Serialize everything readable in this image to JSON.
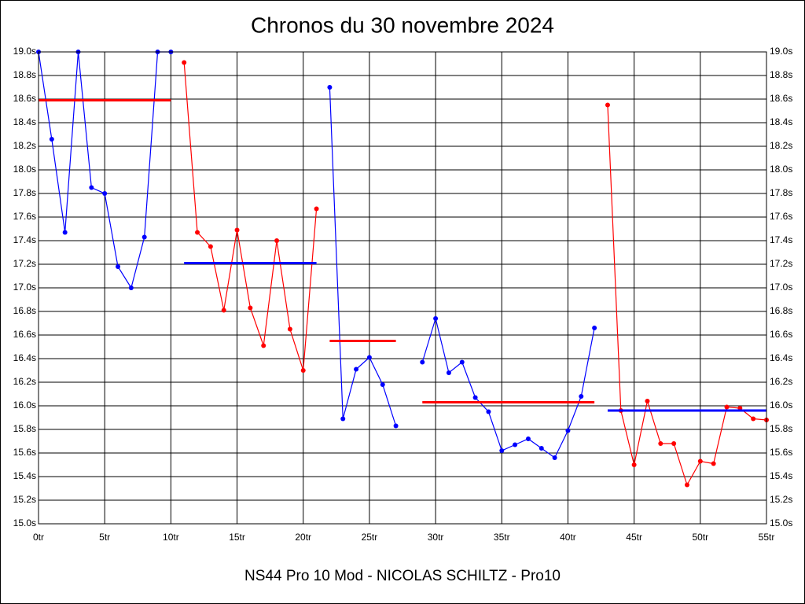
{
  "chart_data": {
    "type": "line",
    "title": "Chronos du 30 novembre 2024",
    "xlabel": "NS44 Pro 10 Mod - NICOLAS SCHILTZ - Pro10",
    "xlim": [
      0,
      55
    ],
    "ylim": [
      15.0,
      19.0
    ],
    "xticks": [
      {
        "value": 0,
        "label": "0tr"
      },
      {
        "value": 5,
        "label": "5tr"
      },
      {
        "value": 10,
        "label": "10tr"
      },
      {
        "value": 15,
        "label": "15tr"
      },
      {
        "value": 20,
        "label": "20tr"
      },
      {
        "value": 25,
        "label": "25tr"
      },
      {
        "value": 30,
        "label": "30tr"
      },
      {
        "value": 35,
        "label": "35tr"
      },
      {
        "value": 40,
        "label": "40tr"
      },
      {
        "value": 45,
        "label": "45tr"
      },
      {
        "value": 50,
        "label": "50tr"
      },
      {
        "value": 55,
        "label": "55tr"
      }
    ],
    "yticks": [
      {
        "value": 15.0,
        "label": "15.0s"
      },
      {
        "value": 15.2,
        "label": "15.2s"
      },
      {
        "value": 15.4,
        "label": "15.4s"
      },
      {
        "value": 15.6,
        "label": "15.6s"
      },
      {
        "value": 15.8,
        "label": "15.8s"
      },
      {
        "value": 16.0,
        "label": "16.0s"
      },
      {
        "value": 16.2,
        "label": "16.2s"
      },
      {
        "value": 16.4,
        "label": "16.4s"
      },
      {
        "value": 16.6,
        "label": "16.6s"
      },
      {
        "value": 16.8,
        "label": "16.8s"
      },
      {
        "value": 17.0,
        "label": "17.0s"
      },
      {
        "value": 17.2,
        "label": "17.2s"
      },
      {
        "value": 17.4,
        "label": "17.4s"
      },
      {
        "value": 17.6,
        "label": "17.6s"
      },
      {
        "value": 17.8,
        "label": "17.8s"
      },
      {
        "value": 18.0,
        "label": "18.0s"
      },
      {
        "value": 18.2,
        "label": "18.2s"
      },
      {
        "value": 18.4,
        "label": "18.4s"
      },
      {
        "value": 18.6,
        "label": "18.6s"
      },
      {
        "value": 18.8,
        "label": "18.8s"
      },
      {
        "value": 19.0,
        "label": "19.0s"
      }
    ],
    "grid": true,
    "series": [
      {
        "color": "#0000ff",
        "x": [
          0,
          1,
          2,
          3,
          4,
          5,
          6,
          7,
          8,
          9,
          10
        ],
        "values": [
          19.0,
          18.26,
          17.47,
          19.0,
          17.85,
          17.8,
          17.18,
          17.0,
          17.43,
          19.0,
          19.0
        ]
      },
      {
        "color": "#ff0000",
        "x": [
          11,
          12,
          13,
          14,
          15,
          16,
          17,
          18,
          19,
          20,
          21
        ],
        "values": [
          18.91,
          17.47,
          17.35,
          16.81,
          17.49,
          16.83,
          16.51,
          17.4,
          16.65,
          16.3,
          17.67
        ]
      },
      {
        "color": "#0000ff",
        "x": [
          22,
          23,
          24,
          25,
          26,
          27
        ],
        "values": [
          18.7,
          15.89,
          16.31,
          16.41,
          16.18,
          15.83
        ]
      },
      {
        "color": "#0000ff",
        "x": [
          29,
          30,
          31,
          32,
          33,
          34,
          35,
          36,
          37,
          38,
          39,
          40,
          41,
          42
        ],
        "values": [
          16.37,
          16.74,
          16.28,
          16.37,
          16.07,
          15.95,
          15.62,
          15.67,
          15.72,
          15.64,
          15.56,
          15.79,
          16.08,
          16.66
        ]
      },
      {
        "color": "#ff0000",
        "x": [
          43,
          44,
          45,
          46,
          47,
          48,
          49,
          50,
          51,
          52,
          53,
          54,
          55
        ],
        "values": [
          18.55,
          15.96,
          15.5,
          16.04,
          15.68,
          15.68,
          15.33,
          15.53,
          15.51,
          15.99,
          15.98,
          15.89,
          15.88
        ]
      }
    ],
    "averages": [
      {
        "color": "#ff0000",
        "x": [
          0,
          10
        ],
        "value": 18.59
      },
      {
        "color": "#0000ff",
        "x": [
          11,
          21
        ],
        "value": 17.21
      },
      {
        "color": "#ff0000",
        "x": [
          22,
          27
        ],
        "value": 16.55
      },
      {
        "color": "#ff0000",
        "x": [
          29,
          42
        ],
        "value": 16.03
      },
      {
        "color": "#0000ff",
        "x": [
          43,
          55
        ],
        "value": 15.96
      }
    ]
  }
}
